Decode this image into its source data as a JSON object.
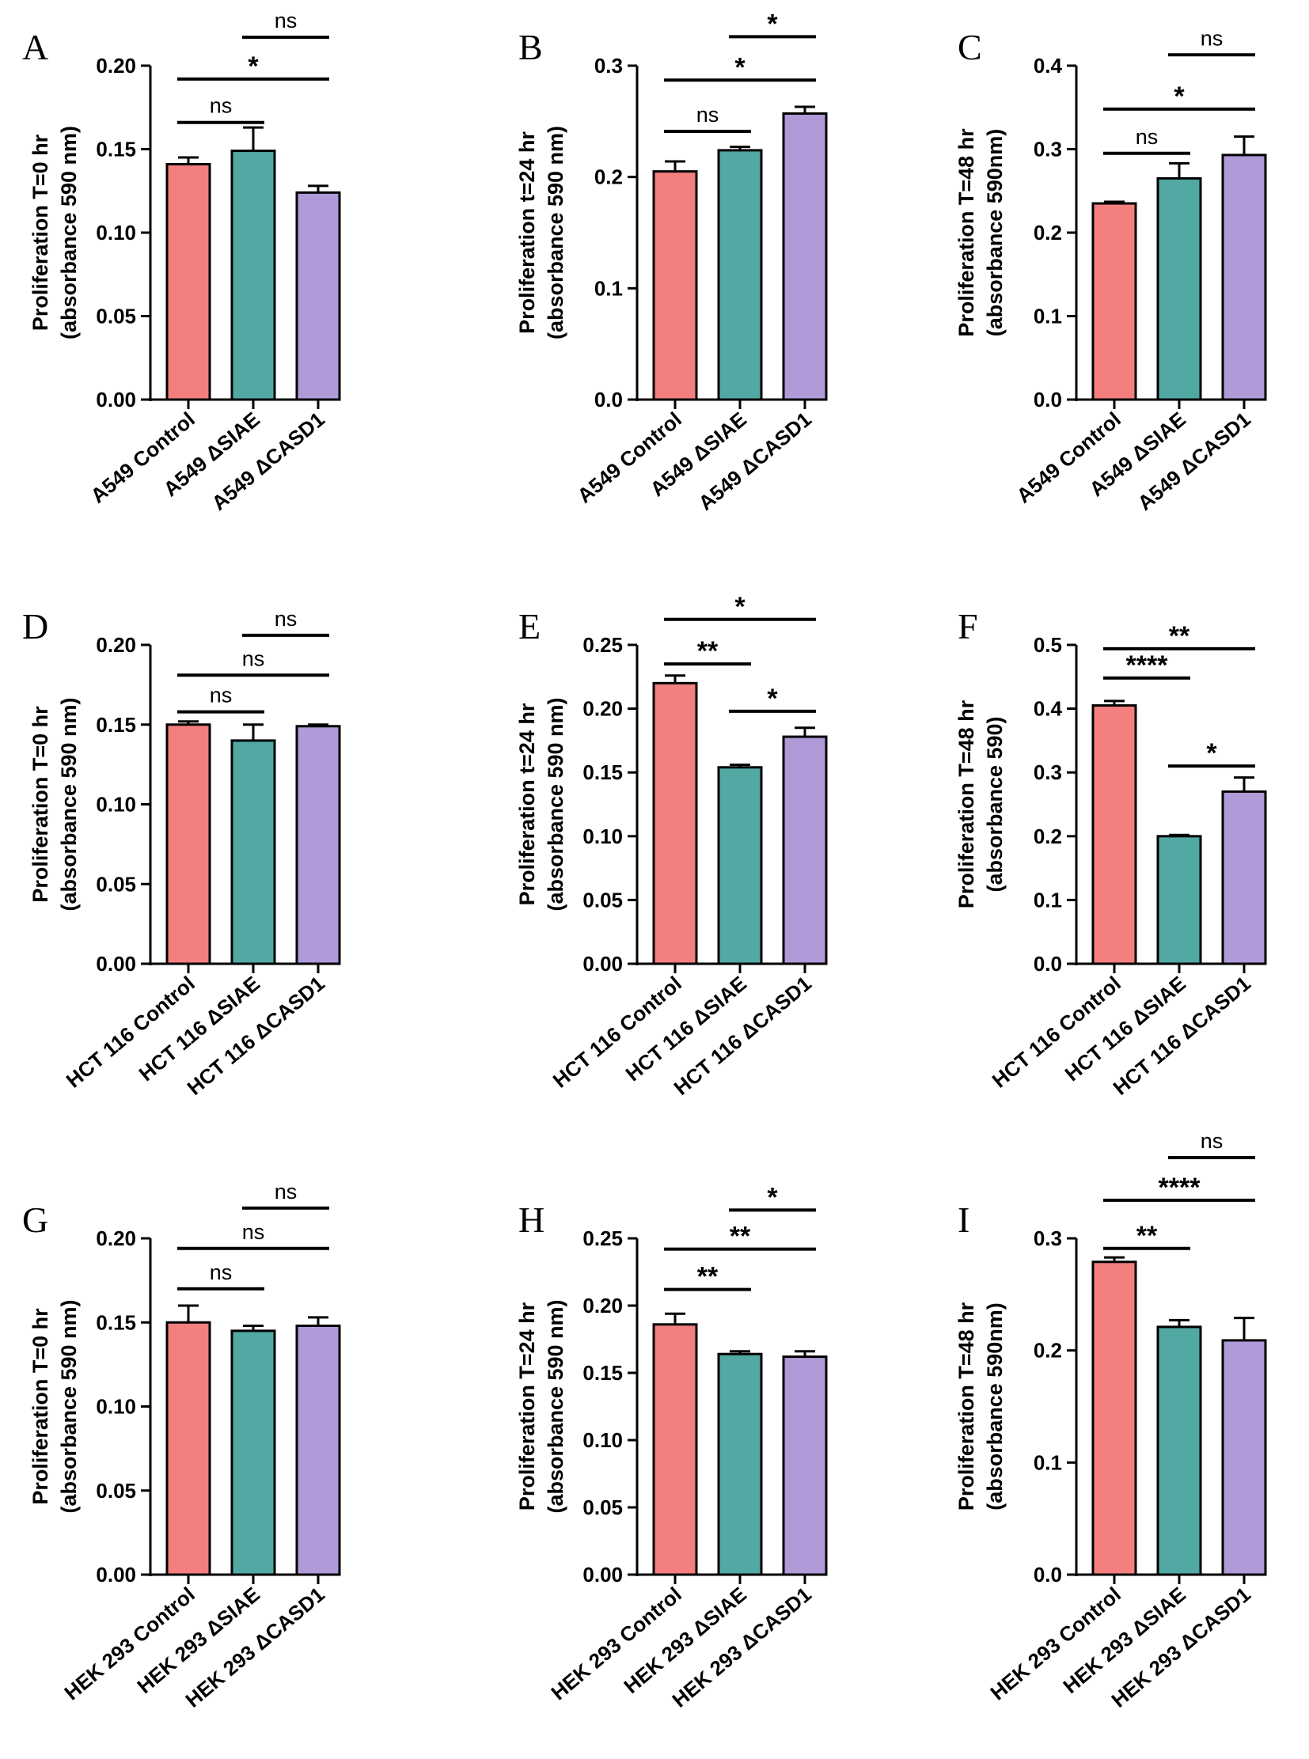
{
  "colors": {
    "control": "#f47f7f",
    "siae": "#52a9a3",
    "casd1": "#b09ad8"
  },
  "chart_data": [
    {
      "panel": "A",
      "type": "bar",
      "ylabel_lines": [
        "Proliferation T=0 hr",
        "(absorbance 590 nm)"
      ],
      "categories": [
        "A549 Control",
        "A549 ΔSIAE",
        "A549 ΔCASD1"
      ],
      "values": [
        0.141,
        0.149,
        0.124
      ],
      "errors": [
        0.004,
        0.014,
        0.004
      ],
      "ylim": [
        0,
        0.2
      ],
      "ticks": [
        0,
        0.05,
        0.1,
        0.15,
        0.2
      ],
      "tick_labels": [
        "0.00",
        "0.05",
        "0.10",
        "0.15",
        "0.20"
      ],
      "comparisons": [
        {
          "from": 0,
          "to": 1,
          "y": 0.166,
          "label": "ns"
        },
        {
          "from": 0,
          "to": 2,
          "y": 0.192,
          "label": "*"
        },
        {
          "from": 1,
          "to": 2,
          "y": 0.217,
          "label": "ns"
        }
      ]
    },
    {
      "panel": "B",
      "type": "bar",
      "ylabel_lines": [
        "Proliferation t=24 hr",
        "(absorbance 590 nm)"
      ],
      "categories": [
        "A549 Control",
        "A549 ΔSIAE",
        "A549 ΔCASD1"
      ],
      "values": [
        0.205,
        0.224,
        0.257
      ],
      "errors": [
        0.009,
        0.003,
        0.006
      ],
      "ylim": [
        0,
        0.3
      ],
      "ticks": [
        0,
        0.1,
        0.2,
        0.3
      ],
      "tick_labels": [
        "0.0",
        "0.1",
        "0.2",
        "0.3"
      ],
      "comparisons": [
        {
          "from": 0,
          "to": 1,
          "y": 0.241,
          "label": "ns"
        },
        {
          "from": 0,
          "to": 2,
          "y": 0.287,
          "label": "*"
        },
        {
          "from": 1,
          "to": 2,
          "y": 0.326,
          "label": "*"
        }
      ]
    },
    {
      "panel": "C",
      "type": "bar",
      "ylabel_lines": [
        "Proliferation T=48 hr",
        "(absorbance 590nm)"
      ],
      "categories": [
        "A549 Control",
        "A549 ΔSIAE",
        "A549 ΔCASD1"
      ],
      "values": [
        0.235,
        0.265,
        0.293
      ],
      "errors": [
        0.002,
        0.018,
        0.022
      ],
      "ylim": [
        0,
        0.4
      ],
      "ticks": [
        0,
        0.1,
        0.2,
        0.3,
        0.4
      ],
      "tick_labels": [
        "0.0",
        "0.1",
        "0.2",
        "0.3",
        "0.4"
      ],
      "comparisons": [
        {
          "from": 0,
          "to": 1,
          "y": 0.295,
          "label": "ns"
        },
        {
          "from": 0,
          "to": 2,
          "y": 0.348,
          "label": "*"
        },
        {
          "from": 1,
          "to": 2,
          "y": 0.413,
          "label": "ns"
        }
      ]
    },
    {
      "panel": "D",
      "type": "bar",
      "ylabel_lines": [
        "Proliferation T=0 hr",
        "(absorbance 590 nm)"
      ],
      "categories": [
        "HCT 116 Control",
        "HCT 116 ΔSIAE",
        "HCT 116 ΔCASD1"
      ],
      "values": [
        0.15,
        0.14,
        0.149
      ],
      "errors": [
        0.002,
        0.01,
        0.001
      ],
      "ylim": [
        0,
        0.2
      ],
      "ticks": [
        0,
        0.05,
        0.1,
        0.15,
        0.2
      ],
      "tick_labels": [
        "0.00",
        "0.05",
        "0.10",
        "0.15",
        "0.20"
      ],
      "comparisons": [
        {
          "from": 0,
          "to": 1,
          "y": 0.158,
          "label": "ns"
        },
        {
          "from": 0,
          "to": 2,
          "y": 0.181,
          "label": "ns"
        },
        {
          "from": 1,
          "to": 2,
          "y": 0.206,
          "label": "ns"
        }
      ]
    },
    {
      "panel": "E",
      "type": "bar",
      "ylabel_lines": [
        "Proliferation t=24 hr",
        "(absorbance 590 nm)"
      ],
      "categories": [
        "HCT 116 Control",
        "HCT 116 ΔSIAE",
        "HCT 116 ΔCASD1"
      ],
      "values": [
        0.22,
        0.154,
        0.178
      ],
      "errors": [
        0.006,
        0.002,
        0.007
      ],
      "ylim": [
        0,
        0.25
      ],
      "ticks": [
        0,
        0.05,
        0.1,
        0.15,
        0.2,
        0.25
      ],
      "tick_labels": [
        "0.00",
        "0.05",
        "0.10",
        "0.15",
        "0.20",
        "0.25"
      ],
      "comparisons": [
        {
          "from": 0,
          "to": 1,
          "y": 0.235,
          "label": "**"
        },
        {
          "from": 0,
          "to": 2,
          "y": 0.27,
          "label": "*"
        },
        {
          "from": 1,
          "to": 2,
          "y": 0.198,
          "label": "*"
        }
      ]
    },
    {
      "panel": "F",
      "type": "bar",
      "ylabel_lines": [
        "Proliferation T=48 hr",
        "(absorbance 590)"
      ],
      "categories": [
        "HCT 116 Control",
        "HCT 116 ΔSIAE",
        "HCT 116 ΔCASD1"
      ],
      "values": [
        0.405,
        0.2,
        0.27
      ],
      "errors": [
        0.007,
        0.002,
        0.022
      ],
      "ylim": [
        0,
        0.5
      ],
      "ticks": [
        0,
        0.1,
        0.2,
        0.3,
        0.4,
        0.5
      ],
      "tick_labels": [
        "0.0",
        "0.1",
        "0.2",
        "0.3",
        "0.4",
        "0.5"
      ],
      "comparisons": [
        {
          "from": 0,
          "to": 1,
          "y": 0.448,
          "label": "****"
        },
        {
          "from": 0,
          "to": 2,
          "y": 0.494,
          "label": "**"
        },
        {
          "from": 1,
          "to": 2,
          "y": 0.31,
          "label": "*"
        }
      ]
    },
    {
      "panel": "G",
      "type": "bar",
      "ylabel_lines": [
        "Proliferation T=0 hr",
        "(absorbance 590 nm)"
      ],
      "categories": [
        "HEK 293 Control",
        "HEK 293 ΔSIAE",
        "HEK 293 ΔCASD1"
      ],
      "values": [
        0.15,
        0.145,
        0.148
      ],
      "errors": [
        0.01,
        0.003,
        0.005
      ],
      "ylim": [
        0,
        0.2
      ],
      "ticks": [
        0,
        0.05,
        0.1,
        0.15,
        0.2
      ],
      "tick_labels": [
        "0.00",
        "0.05",
        "0.10",
        "0.15",
        "0.20"
      ],
      "comparisons": [
        {
          "from": 0,
          "to": 1,
          "y": 0.17,
          "label": "ns"
        },
        {
          "from": 0,
          "to": 2,
          "y": 0.194,
          "label": "ns"
        },
        {
          "from": 1,
          "to": 2,
          "y": 0.218,
          "label": "ns"
        }
      ]
    },
    {
      "panel": "H",
      "type": "bar",
      "ylabel_lines": [
        "Proliferation T=24 hr",
        "(absorbance 590 nm)"
      ],
      "categories": [
        "HEK 293 Control",
        "HEK 293 ΔSIAE",
        "HEK 293 ΔCASD1"
      ],
      "values": [
        0.186,
        0.164,
        0.162
      ],
      "errors": [
        0.008,
        0.002,
        0.004
      ],
      "ylim": [
        0,
        0.25
      ],
      "ticks": [
        0,
        0.05,
        0.1,
        0.15,
        0.2,
        0.25
      ],
      "tick_labels": [
        "0.00",
        "0.05",
        "0.10",
        "0.15",
        "0.20",
        "0.25"
      ],
      "comparisons": [
        {
          "from": 0,
          "to": 1,
          "y": 0.212,
          "label": "**"
        },
        {
          "from": 0,
          "to": 2,
          "y": 0.242,
          "label": "**"
        },
        {
          "from": 1,
          "to": 2,
          "y": 0.271,
          "label": "*"
        }
      ]
    },
    {
      "panel": "I",
      "type": "bar",
      "ylabel_lines": [
        "Proliferation T=48 hr",
        "(absorbance 590nm)"
      ],
      "categories": [
        "HEK 293 Control",
        "HEK 293 ΔSIAE",
        "HEK 293 ΔCASD1"
      ],
      "values": [
        0.279,
        0.221,
        0.209
      ],
      "errors": [
        0.004,
        0.006,
        0.02
      ],
      "ylim": [
        0,
        0.3
      ],
      "ticks": [
        0,
        0.1,
        0.2,
        0.3
      ],
      "tick_labels": [
        "0.0",
        "0.1",
        "0.2",
        "0.3"
      ],
      "comparisons": [
        {
          "from": 0,
          "to": 1,
          "y": 0.291,
          "label": "**"
        },
        {
          "from": 0,
          "to": 2,
          "y": 0.334,
          "label": "****"
        },
        {
          "from": 1,
          "to": 2,
          "y": 0.372,
          "label": "ns"
        }
      ]
    }
  ]
}
